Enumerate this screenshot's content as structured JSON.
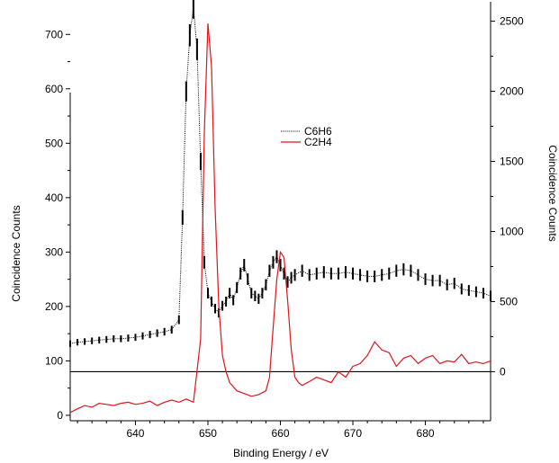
{
  "chart_data": {
    "type": "line",
    "title": "",
    "xlabel": "Binding Energy / eV",
    "ylabel_left": "Coincidence Counts",
    "ylabel_right": "Coincidence Counts",
    "xlim": [
      631,
      689
    ],
    "ylim_left": [
      -10,
      750
    ],
    "ylim_right": [
      -350,
      2600
    ],
    "x_ticks": [
      640,
      650,
      660,
      670,
      680
    ],
    "y_ticks_left": [
      0,
      100,
      200,
      300,
      400,
      500,
      600,
      700
    ],
    "y_ticks_right": [
      0,
      500,
      1000,
      1500,
      2000,
      2500
    ],
    "grid": false,
    "legend_position": "top-center",
    "series": [
      {
        "name": "C6H6",
        "axis": "right",
        "color": "#000000",
        "style": "dotted-with-error-bars",
        "x": [
          631,
          632,
          633,
          634,
          635,
          636,
          637,
          638,
          639,
          640,
          641,
          642,
          643,
          644,
          645,
          646,
          646.5,
          647,
          647.5,
          648,
          648.5,
          649,
          649.5,
          650,
          650.5,
          651,
          651.5,
          652,
          652.5,
          653,
          653.5,
          654,
          654.5,
          655,
          655.5,
          656,
          656.5,
          657,
          657.5,
          658,
          658.5,
          659,
          659.5,
          660,
          660.5,
          661,
          661.5,
          662,
          663,
          664,
          665,
          666,
          667,
          668,
          669,
          670,
          671,
          672,
          673,
          674,
          675,
          676,
          677,
          678,
          679,
          680,
          681,
          682,
          683,
          684,
          685,
          686,
          687,
          688,
          689
        ],
        "y": [
          200,
          210,
          215,
          220,
          225,
          230,
          235,
          235,
          240,
          245,
          255,
          265,
          275,
          285,
          300,
          370,
          1100,
          2000,
          2400,
          2600,
          2300,
          1500,
          780,
          560,
          500,
          450,
          420,
          470,
          500,
          560,
          510,
          600,
          700,
          760,
          660,
          560,
          540,
          520,
          560,
          620,
          720,
          780,
          820,
          760,
          700,
          640,
          670,
          690,
          720,
          690,
          700,
          710,
          700,
          700,
          710,
          700,
          690,
          680,
          680,
          690,
          700,
          720,
          730,
          720,
          690,
          660,
          650,
          650,
          620,
          630,
          590,
          580,
          570,
          560,
          540
        ]
      },
      {
        "name": "C2H4",
        "axis": "left",
        "color": "#e0141b",
        "style": "solid",
        "x": [
          631,
          632,
          633,
          634,
          635,
          636,
          637,
          638,
          639,
          640,
          641,
          642,
          643,
          644,
          645,
          646,
          647,
          648,
          649,
          649.5,
          650,
          650.5,
          651,
          651.5,
          652,
          652.5,
          653,
          654,
          655,
          656,
          657,
          658,
          658.5,
          659,
          659.5,
          660,
          660.5,
          661,
          661.5,
          662,
          662.5,
          663,
          664,
          665,
          666,
          667,
          668,
          669,
          670,
          671,
          672,
          673,
          674,
          675,
          676,
          677,
          678,
          679,
          680,
          681,
          682,
          683,
          684,
          685,
          686,
          687,
          688,
          689
        ],
        "y": [
          5,
          12,
          18,
          15,
          22,
          20,
          18,
          22,
          24,
          20,
          22,
          26,
          18,
          24,
          28,
          24,
          30,
          24,
          140,
          520,
          720,
          640,
          380,
          200,
          110,
          80,
          60,
          45,
          40,
          35,
          38,
          45,
          70,
          160,
          250,
          300,
          290,
          210,
          120,
          70,
          60,
          55,
          62,
          70,
          65,
          60,
          80,
          70,
          90,
          95,
          110,
          135,
          120,
          115,
          90,
          105,
          110,
          95,
          105,
          110,
          95,
          100,
          98,
          112,
          95,
          98,
          95,
          100
        ]
      }
    ]
  }
}
